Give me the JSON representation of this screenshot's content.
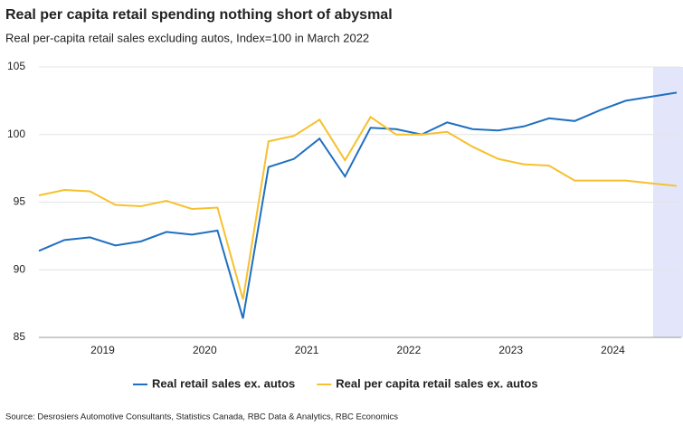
{
  "chart_data": {
    "type": "line",
    "title": "Real per capita retail spending nothing short of abysmal",
    "subtitle": "Real per-capita retail sales excluding autos, Index=100 in March 2022",
    "source": "Source: Desrosiers Automotive Consultants, Statistics Canada, RBC Data & Analytics, RBC Economics",
    "categories": [
      null,
      null,
      "2019",
      null,
      null,
      null,
      "2020",
      null,
      null,
      null,
      "2021",
      null,
      null,
      null,
      "2022",
      null,
      null,
      null,
      "2023",
      null,
      null,
      null,
      "2024",
      null,
      null,
      null
    ],
    "series": [
      {
        "name": "Real retail sales ex. autos",
        "color": "#1f6fc0",
        "values": [
          91.4,
          92.2,
          92.4,
          91.8,
          92.1,
          92.8,
          92.6,
          92.9,
          86.4,
          97.6,
          98.2,
          99.7,
          96.9,
          100.5,
          100.4,
          100.0,
          100.9,
          100.4,
          100.3,
          100.6,
          101.2,
          101.0,
          101.8,
          102.5,
          102.8,
          103.1
        ]
      },
      {
        "name": "Real per capita retail sales ex. autos",
        "color": "#f6c12f",
        "values": [
          95.5,
          95.9,
          95.8,
          94.8,
          94.7,
          95.1,
          94.5,
          94.6,
          87.8,
          99.5,
          99.9,
          101.1,
          98.1,
          101.3,
          100.0,
          100.0,
          100.2,
          99.1,
          98.2,
          97.8,
          97.7,
          96.6,
          96.6,
          96.6,
          96.4,
          96.2
        ]
      }
    ],
    "ylim": [
      85,
      105
    ],
    "yticks": [
      85,
      90,
      95,
      100,
      105
    ],
    "grid": true,
    "legend": "bottom"
  }
}
